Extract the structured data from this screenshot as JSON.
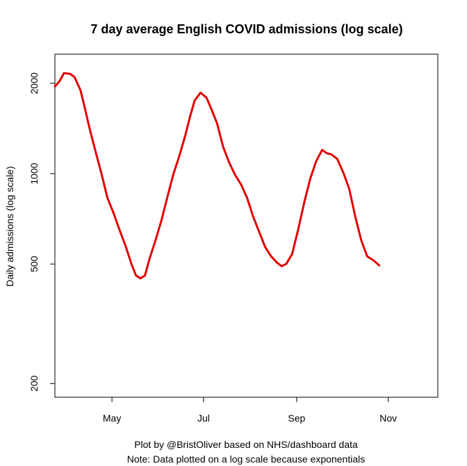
{
  "chart_data": {
    "type": "line",
    "title": "7 day average English COVID admissions (log scale)",
    "xlabel": "",
    "ylabel": "Daily admissions (log scale)",
    "log_y": true,
    "ylim": [
      180,
      2500
    ],
    "xlim": [
      "2022-03-24",
      "2022-12-04"
    ],
    "x_ticks": [
      {
        "date": "2022-05-01",
        "label": "May"
      },
      {
        "date": "2022-07-01",
        "label": "Jul"
      },
      {
        "date": "2022-09-01",
        "label": "Sep"
      },
      {
        "date": "2022-11-01",
        "label": "Nov"
      }
    ],
    "y_ticks": [
      200,
      500,
      1000,
      2000
    ],
    "grid": false,
    "series": [
      {
        "color": "#e00000",
        "points": [
          [
            "2022-03-24",
            1950
          ],
          [
            "2022-03-27",
            2030
          ],
          [
            "2022-03-30",
            2160
          ],
          [
            "2022-04-03",
            2150
          ],
          [
            "2022-04-06",
            2100
          ],
          [
            "2022-04-10",
            1900
          ],
          [
            "2022-04-13",
            1650
          ],
          [
            "2022-04-16",
            1420
          ],
          [
            "2022-04-20",
            1190
          ],
          [
            "2022-04-24",
            1000
          ],
          [
            "2022-04-28",
            830
          ],
          [
            "2022-05-02",
            740
          ],
          [
            "2022-05-06",
            650
          ],
          [
            "2022-05-10",
            575
          ],
          [
            "2022-05-14",
            500
          ],
          [
            "2022-05-17",
            458
          ],
          [
            "2022-05-20",
            448
          ],
          [
            "2022-05-23",
            458
          ],
          [
            "2022-05-26",
            520
          ],
          [
            "2022-05-30",
            600
          ],
          [
            "2022-06-03",
            700
          ],
          [
            "2022-06-07",
            840
          ],
          [
            "2022-06-11",
            1000
          ],
          [
            "2022-06-15",
            1150
          ],
          [
            "2022-06-19",
            1350
          ],
          [
            "2022-06-22",
            1550
          ],
          [
            "2022-06-25",
            1750
          ],
          [
            "2022-06-29",
            1860
          ],
          [
            "2022-07-03",
            1790
          ],
          [
            "2022-07-06",
            1650
          ],
          [
            "2022-07-10",
            1470
          ],
          [
            "2022-07-14",
            1230
          ],
          [
            "2022-07-18",
            1090
          ],
          [
            "2022-07-22",
            990
          ],
          [
            "2022-07-26",
            920
          ],
          [
            "2022-07-30",
            830
          ],
          [
            "2022-08-03",
            720
          ],
          [
            "2022-08-07",
            640
          ],
          [
            "2022-08-11",
            570
          ],
          [
            "2022-08-15",
            530
          ],
          [
            "2022-08-19",
            505
          ],
          [
            "2022-08-22",
            492
          ],
          [
            "2022-08-25",
            500
          ],
          [
            "2022-08-29",
            540
          ],
          [
            "2022-09-02",
            650
          ],
          [
            "2022-09-06",
            800
          ],
          [
            "2022-09-10",
            960
          ],
          [
            "2022-09-14",
            1100
          ],
          [
            "2022-09-18",
            1200
          ],
          [
            "2022-09-21",
            1170
          ],
          [
            "2022-09-24",
            1160
          ],
          [
            "2022-09-28",
            1120
          ],
          [
            "2022-10-02",
            1010
          ],
          [
            "2022-10-06",
            890
          ],
          [
            "2022-10-10",
            720
          ],
          [
            "2022-10-14",
            600
          ],
          [
            "2022-10-18",
            530
          ],
          [
            "2022-10-22",
            515
          ],
          [
            "2022-10-26",
            495
          ]
        ]
      }
    ],
    "captions": [
      "Plot by @BristOliver based on NHS/dashboard data",
      "Note: Data plotted on a log scale because exponentials"
    ]
  }
}
